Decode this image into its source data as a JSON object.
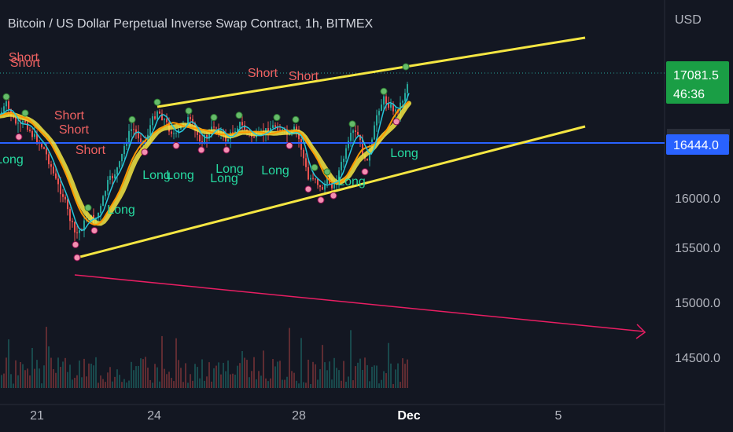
{
  "title": "Bitcoin / US Dollar Perpetual Inverse Swap Contract, 1h, BITMEX",
  "currency_label": "USD",
  "colors": {
    "background": "#131722",
    "channel": "#f5e642",
    "support_line": "#2962ff",
    "projection": "#e91e63",
    "bull": "#26a69a",
    "bear": "#ef5350",
    "long_text": "#26d9a0",
    "short_text": "#f06262",
    "price_tag": "#1a9e45"
  },
  "chart_data": {
    "type": "line",
    "title": "Bitcoin / US Dollar Perpetual Inverse Swap Contract, 1h, BITMEX",
    "y_ticks": [
      "16000.0",
      "15500.0",
      "15000.0",
      "14500.0"
    ],
    "x_ticks": [
      "21",
      "24",
      "28",
      "Dec",
      "5"
    ],
    "current_price": "17081.5",
    "countdown": "46:36",
    "horizontal_line_price": "16444.0",
    "ylim": [
      14200,
      17900
    ],
    "series": [
      {
        "points": [
          [
            0,
            16760
          ],
          [
            8,
            16850
          ],
          [
            16,
            16720
          ],
          [
            24,
            16640
          ],
          [
            32,
            16700
          ],
          [
            40,
            16580
          ],
          [
            48,
            16520
          ],
          [
            56,
            16440
          ],
          [
            64,
            16300
          ],
          [
            72,
            16130
          ],
          [
            80,
            16020
          ],
          [
            88,
            15820
          ],
          [
            96,
            15650
          ],
          [
            104,
            15720
          ],
          [
            112,
            15830
          ],
          [
            120,
            15780
          ],
          [
            128,
            15900
          ],
          [
            136,
            16120
          ],
          [
            144,
            16200
          ],
          [
            152,
            16300
          ],
          [
            160,
            16520
          ],
          [
            168,
            16640
          ],
          [
            176,
            16560
          ],
          [
            184,
            16500
          ],
          [
            192,
            16680
          ],
          [
            200,
            16800
          ],
          [
            208,
            16720
          ],
          [
            216,
            16620
          ],
          [
            224,
            16560
          ],
          [
            232,
            16680
          ],
          [
            240,
            16720
          ],
          [
            248,
            16600
          ],
          [
            256,
            16520
          ],
          [
            264,
            16560
          ],
          [
            272,
            16660
          ],
          [
            280,
            16600
          ],
          [
            288,
            16520
          ],
          [
            296,
            16600
          ],
          [
            304,
            16680
          ],
          [
            312,
            16620
          ],
          [
            320,
            16560
          ],
          [
            328,
            16560
          ],
          [
            336,
            16600
          ],
          [
            344,
            16640
          ],
          [
            352,
            16660
          ],
          [
            360,
            16600
          ],
          [
            368,
            16560
          ],
          [
            376,
            16640
          ],
          [
            384,
            16420
          ],
          [
            392,
            16160
          ],
          [
            400,
            16200
          ],
          [
            408,
            16060
          ],
          [
            416,
            16160
          ],
          [
            424,
            16100
          ],
          [
            432,
            16260
          ],
          [
            440,
            16420
          ],
          [
            448,
            16600
          ],
          [
            456,
            16560
          ],
          [
            464,
            16320
          ],
          [
            472,
            16460
          ],
          [
            480,
            16800
          ],
          [
            488,
            16900
          ],
          [
            496,
            16840
          ],
          [
            504,
            16780
          ],
          [
            512,
            16900
          ],
          [
            520,
            17090
          ]
        ]
      }
    ],
    "signals": [
      {
        "label": "Short",
        "x": 30,
        "y": 78
      },
      {
        "label": "Short",
        "x": 32,
        "y": 85
      },
      {
        "label": "Short",
        "x": 88,
        "y": 152
      },
      {
        "label": "Short",
        "x": 94,
        "y": 170
      },
      {
        "label": "Short",
        "x": 115,
        "y": 196
      },
      {
        "label": "Short",
        "x": 334,
        "y": 98
      },
      {
        "label": "Short",
        "x": 386,
        "y": 102
      },
      {
        "label": "Long",
        "x": 12,
        "y": 208
      },
      {
        "label": "Long",
        "x": 154,
        "y": 272
      },
      {
        "label": "Long",
        "x": 199,
        "y": 228
      },
      {
        "label": "Long",
        "x": 229,
        "y": 228
      },
      {
        "label": "Long",
        "x": 285,
        "y": 232
      },
      {
        "label": "Long",
        "x": 292,
        "y": 220
      },
      {
        "label": "Long",
        "x": 350,
        "y": 222
      },
      {
        "label": "Long",
        "x": 447,
        "y": 236
      },
      {
        "label": "Long",
        "x": 514,
        "y": 200
      }
    ]
  }
}
